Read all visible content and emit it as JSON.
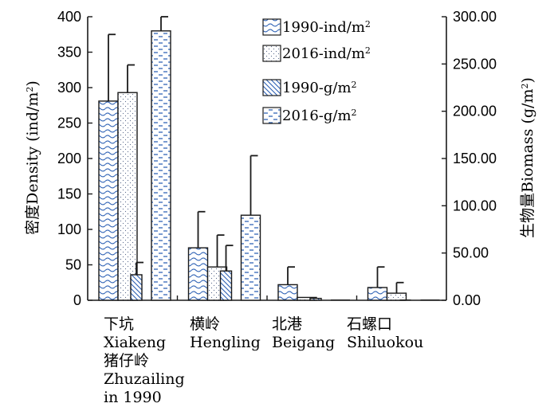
{
  "chart_data": {
    "type": "bar",
    "left_axis": {
      "label": "密度Density (ind/m",
      "unit_sup": "2",
      "label_end": ")",
      "ylim": [
        0,
        400
      ],
      "ticks": [
        "0",
        "50",
        "100",
        "150",
        "200",
        "250",
        "300",
        "350",
        "400"
      ]
    },
    "right_axis": {
      "label": "生物量Biomass (g/m",
      "unit_sup": "2",
      "label_end": ")",
      "ylim": [
        0,
        300
      ],
      "ticks": [
        "0.00",
        "50.00",
        "100.00",
        "150.00",
        "200.00",
        "250.00",
        "300.00"
      ]
    },
    "categories": [
      {
        "cn": "下坑",
        "en": [
          "Xiakeng"
        ],
        "cn2": "猪仔岭",
        "en2": [
          "Zhuzailing",
          "in 1990"
        ]
      },
      {
        "cn": "横岭",
        "en": [
          "Hengling"
        ]
      },
      {
        "cn": "北港",
        "en": [
          "Beigang"
        ]
      },
      {
        "cn": "石螺口",
        "en": [
          "Shiluokou"
        ]
      }
    ],
    "series": [
      {
        "name": "1990-ind/m",
        "sup": "2",
        "axis": "left",
        "pattern": "wave",
        "values": [
          281,
          74,
          22,
          18
        ],
        "errors": [
          375,
          125,
          47,
          47
        ]
      },
      {
        "name": "2016-ind/m",
        "sup": "2",
        "axis": "left",
        "pattern": "dots",
        "values": [
          293,
          47,
          4,
          10
        ],
        "errors": [
          332,
          92,
          null,
          25
        ]
      },
      {
        "name": "1990-g/m",
        "sup": "2",
        "axis": "right",
        "pattern": "diagonal",
        "values": [
          27,
          31,
          2,
          0
        ],
        "errors": [
          40,
          58,
          null,
          null
        ]
      },
      {
        "name": "2016-g/m",
        "sup": "2",
        "axis": "right",
        "pattern": "dashes",
        "values": [
          285,
          90,
          0,
          0
        ],
        "errors": [
          300,
          153,
          null,
          null
        ]
      }
    ],
    "legend_placement": "top-right",
    "grid": false,
    "colors": {
      "stroke": "#1a1a1a",
      "pattern": "#2b5fb4"
    }
  }
}
